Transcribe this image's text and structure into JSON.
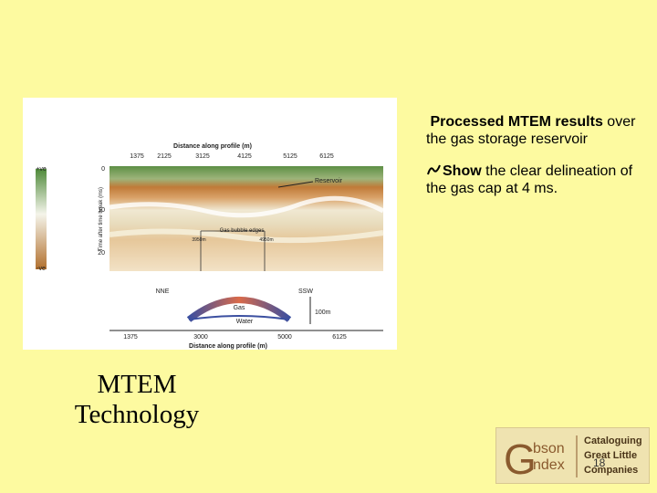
{
  "figure": {
    "title": "Distance along profile (m)",
    "top_ticks": [
      1375,
      2125,
      3125,
      4125,
      5125,
      6125
    ],
    "polarity": [
      "+ve",
      "-ve"
    ],
    "time_ticks": [
      0,
      10,
      20
    ],
    "y_label": "Time after time break (ms)",
    "reservoir": "Reservoir",
    "gas_edges": "Gas bubble edges",
    "left_edge": "3950m",
    "right_edge": "4950m",
    "section": {
      "left": "NNE",
      "right": "SSW",
      "gas": "Gas",
      "water": "Water",
      "scale": "100m",
      "ticks": [
        1375,
        3000,
        5000,
        6125
      ],
      "x_label": "Distance along profile (m)"
    }
  },
  "bullets": [
    {
      "bold": "Processed MTEM results",
      "text": " over the gas storage reservoir"
    },
    {
      "bold": "Show",
      "text": " the clear delineation of the gas cap at 4 ms."
    }
  ],
  "title": "MTEM Technology",
  "logo": {
    "initial": "G",
    "line1": "bson",
    "line2": "ndex",
    "tagline": [
      "Cataloguing",
      "Great Little",
      "Companies"
    ]
  },
  "page_number": 18
}
